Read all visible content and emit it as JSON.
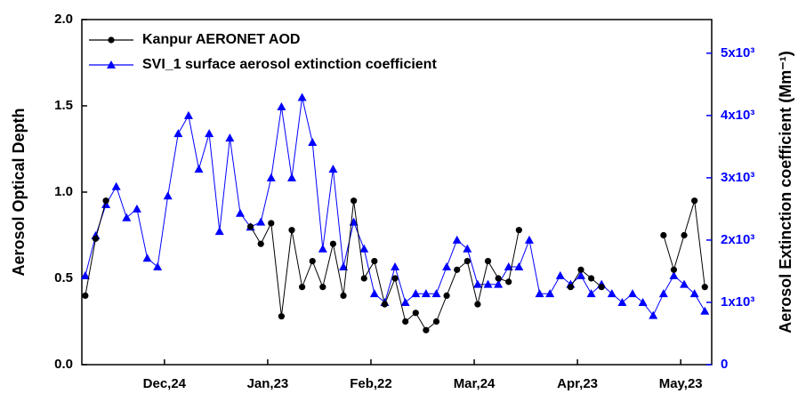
{
  "chart_data": {
    "type": "line",
    "y_label": "Aerosol  Optical Depth",
    "y2_label": "Aerosol Extinction coefficient (Mm⁻¹)",
    "x": [
      "Dec,1",
      "Dec,4",
      "Dec,7",
      "Dec,10",
      "Dec,13",
      "Dec,16",
      "Dec,19",
      "Dec,22",
      "Dec,25",
      "Dec,28",
      "Dec,31",
      "Jan,3",
      "Jan,6",
      "Jan,9",
      "Jan,12",
      "Jan,15",
      "Jan,18",
      "Jan,21",
      "Jan,24",
      "Jan,27",
      "Jan,30",
      "Feb,2",
      "Feb,5",
      "Feb,8",
      "Feb,11",
      "Feb,14",
      "Feb,17",
      "Feb,20",
      "Feb,23",
      "Feb,26",
      "Mar,1",
      "Mar,4",
      "Mar,7",
      "Mar,10",
      "Mar,13",
      "Mar,16",
      "Mar,19",
      "Mar,22",
      "Mar,25",
      "Mar,28",
      "Mar,31",
      "Apr,3",
      "Apr,6",
      "Apr,9",
      "Apr,12",
      "Apr,15",
      "Apr,18",
      "Apr,21",
      "Apr,24",
      "Apr,27",
      "Apr,30",
      "May,3",
      "May,6",
      "May,9",
      "May,12",
      "May,15",
      "May,18",
      "May,21",
      "May,24",
      "May,27",
      "May,30"
    ],
    "xlim": [
      "Nov,30",
      "Jun,1"
    ],
    "xticks": [
      "Dec,24",
      "Jan,23",
      "Feb,22",
      "Mar,24",
      "Apr,23",
      "May,23"
    ],
    "ylim": [
      0,
      2
    ],
    "yticks": [
      {
        "value": 0,
        "label": "0.0"
      },
      0.5,
      {
        "value": 1,
        "label": "1.0"
      },
      1.5,
      {
        "value": 2,
        "label": "2.0"
      }
    ],
    "y2lim": [
      0,
      5540
    ],
    "y2ticks": [
      0,
      {
        "value": 1000,
        "label": "1x10³"
      },
      {
        "value": 2000,
        "label": "2x10³"
      },
      {
        "value": 3000,
        "label": "3x10³"
      },
      {
        "value": 4000,
        "label": "4x10³"
      },
      {
        "value": 5000,
        "label": "5x10³"
      }
    ],
    "legend": "upper left",
    "series": [
      {
        "name": "Kanpur AERONET AOD",
        "color": "#000000",
        "marker": "circle",
        "values": [
          0.4,
          0.73,
          0.95,
          null,
          null,
          null,
          null,
          null,
          null,
          null,
          null,
          null,
          null,
          null,
          null,
          null,
          0.8,
          0.7,
          0.82,
          0.28,
          0.78,
          0.45,
          0.6,
          0.45,
          0.7,
          0.4,
          0.95,
          0.5,
          0.6,
          0.35,
          0.5,
          0.25,
          0.3,
          0.2,
          0.25,
          0.4,
          0.55,
          0.6,
          0.35,
          0.6,
          0.5,
          0.48,
          0.78,
          null,
          null,
          null,
          null,
          0.45,
          0.55,
          0.5,
          0.45,
          null,
          null,
          null,
          null,
          null,
          0.75,
          0.55,
          0.75,
          0.95,
          0.45
        ]
      },
      {
        "name": "SVI_1 surface aerosol extinction coefficient",
        "color": "#0000ff",
        "marker": "triangle",
        "axis": "y2",
        "values": [
          1430,
          2070,
          2570,
          2860,
          2360,
          2500,
          1710,
          1570,
          2710,
          3710,
          4000,
          3140,
          3710,
          2140,
          3640,
          2430,
          2210,
          2290,
          3000,
          4140,
          3000,
          4290,
          3570,
          1860,
          3140,
          1570,
          2290,
          1860,
          1140,
          1000,
          1570,
          1000,
          1140,
          1140,
          1140,
          1570,
          2000,
          1860,
          1290,
          1290,
          1290,
          1570,
          1570,
          2000,
          1140,
          1140,
          1430,
          1290,
          1430,
          1140,
          1290,
          1140,
          1000,
          1140,
          1000,
          790,
          1140,
          1430,
          1290,
          1140,
          860
        ]
      }
    ]
  }
}
